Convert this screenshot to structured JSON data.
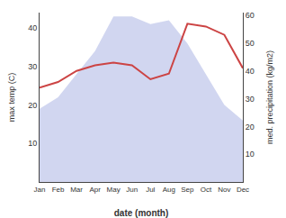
{
  "chart_data": {
    "type": "area",
    "categories": [
      "Jan",
      "Feb",
      "Mar",
      "Apr",
      "May",
      "Jun",
      "Jul",
      "Aug",
      "Sep",
      "Oct",
      "Nov",
      "Dec"
    ],
    "series": [
      {
        "type": "area",
        "color": "#b8c0e8",
        "values": [
          19,
          22,
          28,
          34,
          43,
          43,
          41,
          42,
          36,
          28,
          20,
          16
        ]
      },
      {
        "type": "line",
        "color": "#cc4444",
        "axis": "y2",
        "values": [
          34,
          36,
          40,
          42,
          43,
          42,
          37,
          39,
          57,
          56,
          53,
          41
        ]
      }
    ],
    "xlabel": "date (month)",
    "ylabel": "max temp (C)",
    "y2label": "med. precipitation (kg/m2)",
    "ylim": [
      0,
      44
    ],
    "yticks": [
      10,
      20,
      30,
      40
    ],
    "y2lim": [
      0,
      61
    ],
    "y2ticks": [
      10,
      20,
      30,
      40,
      50,
      60
    ],
    "grid": false
  }
}
